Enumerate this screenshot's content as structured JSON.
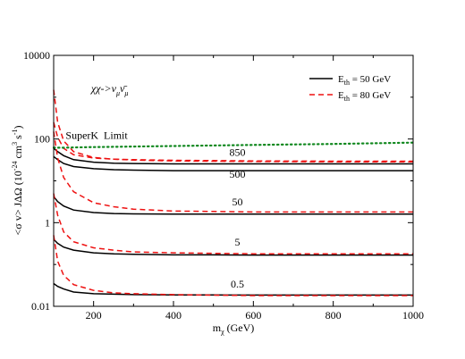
{
  "chart_data": {
    "type": "line",
    "title": "χχ->νμν̄μ",
    "title_parts": {
      "lead": "χχ->ν",
      "sub1": "μ",
      "mid": "ν̄",
      "sub2": "μ"
    },
    "xlabel": "mχ (GeV)",
    "xlabel_parts": {
      "lead": "m",
      "sub": "χ",
      "tail": " (GeV)"
    },
    "ylabel": "<σ v> JΔΩ (10^-24 cm^3 s^-1)",
    "ylabel_parts": {
      "lead": "<σ v> JΔΩ (10",
      "e1": "-24",
      "m1": " cm",
      "e2": "3",
      "m2": " s",
      "e3": "-1",
      "tail": ")"
    },
    "xlim": [
      100,
      1000
    ],
    "ylim": [
      0.01,
      10000
    ],
    "yscale": "log",
    "grid": false,
    "legend_position": "top-right",
    "x_ticks": [
      200,
      400,
      600,
      800,
      1000
    ],
    "x_tick_labels": [
      "200",
      "400",
      "600",
      "800",
      "1000"
    ],
    "y_ticks": [
      0.01,
      1,
      100,
      10000
    ],
    "y_tick_labels": [
      "0.01",
      "1",
      "100",
      "10000"
    ],
    "legend": [
      {
        "label_lead": "E",
        "label_sub": "th",
        "label_tail": " = 50 GeV",
        "color": "#000000",
        "dash": "solid"
      },
      {
        "label_lead": "E",
        "label_sub": "th",
        "label_tail": " = 80 GeV",
        "color": "#ee1111",
        "dash": "dashed"
      }
    ],
    "x": [
      100,
      110,
      125,
      150,
      200,
      250,
      300,
      400,
      500,
      600,
      800,
      1000
    ],
    "series": [
      {
        "group": "850",
        "threshold": "50 GeV",
        "color": "#000000",
        "dash": "solid",
        "values": [
          38,
          32,
          26,
          22,
          19.5,
          18.5,
          18,
          17.5,
          17.5,
          17.5,
          17.5,
          17.5
        ]
      },
      {
        "group": "850",
        "threshold": "80 GeV",
        "color": "#ee1111",
        "dash": "dashed",
        "values": [
          1500,
          250,
          90,
          50,
          36,
          33,
          31.5,
          30,
          29.5,
          29,
          28.5,
          28.5
        ]
      },
      {
        "group": "500",
        "threshold": "50 GeV",
        "color": "#000000",
        "dash": "solid",
        "values": [
          60,
          50,
          40,
          32,
          28,
          26.5,
          26,
          25.5,
          25.5,
          25.5,
          25.5,
          25.5
        ]
      },
      {
        "group": "500",
        "threshold": "80 GeV",
        "color": "#ee1111",
        "dash": "dashed",
        "values": [
          250,
          110,
          60,
          42,
          35,
          33,
          32,
          31,
          30.5,
          30,
          29.5,
          29.5
        ]
      },
      {
        "group": "50",
        "threshold": "50 GeV",
        "color": "#000000",
        "dash": "solid",
        "values": [
          4.2,
          3.2,
          2.5,
          2.0,
          1.75,
          1.65,
          1.62,
          1.6,
          1.6,
          1.6,
          1.6,
          1.6
        ]
      },
      {
        "group": "50",
        "threshold": "80 GeV",
        "color": "#ee1111",
        "dash": "dashed",
        "values": [
          150,
          35,
          12,
          5.5,
          3.0,
          2.4,
          2.1,
          1.9,
          1.85,
          1.8,
          1.8,
          1.8
        ]
      },
      {
        "group": "5",
        "threshold": "50 GeV",
        "color": "#000000",
        "dash": "solid",
        "values": [
          0.4,
          0.32,
          0.26,
          0.22,
          0.19,
          0.18,
          0.175,
          0.17,
          0.17,
          0.168,
          0.168,
          0.168
        ]
      },
      {
        "group": "5",
        "threshold": "80 GeV",
        "color": "#ee1111",
        "dash": "dashed",
        "values": [
          5,
          1.5,
          0.6,
          0.35,
          0.25,
          0.22,
          0.2,
          0.19,
          0.185,
          0.18,
          0.18,
          0.18
        ]
      },
      {
        "group": "0.5",
        "threshold": "50 GeV",
        "color": "#000000",
        "dash": "solid",
        "values": [
          0.035,
          0.03,
          0.026,
          0.022,
          0.02,
          0.0195,
          0.019,
          0.0188,
          0.0187,
          0.0186,
          0.0186,
          0.0186
        ]
      },
      {
        "group": "0.5",
        "threshold": "80 GeV",
        "color": "#ee1111",
        "dash": "dashed",
        "values": [
          0.5,
          0.12,
          0.055,
          0.033,
          0.024,
          0.021,
          0.02,
          0.019,
          0.0185,
          0.018,
          0.018,
          0.018
        ]
      },
      {
        "group": "SuperK Limit",
        "threshold": "",
        "color": "#11881f",
        "dash": "dotted",
        "values": [
          62,
          62,
          62,
          63,
          64,
          65,
          66,
          68,
          70,
          72,
          76,
          82
        ]
      }
    ],
    "annotations": [
      {
        "text": "SuperK  Limit",
        "x": 130,
        "y": 100
      },
      {
        "text": "850",
        "x": 560,
        "y": 40
      },
      {
        "text": "500",
        "x": 560,
        "y": 12
      },
      {
        "text": "50",
        "x": 560,
        "y": 2.6
      },
      {
        "text": "5",
        "x": 560,
        "y": 0.28
      },
      {
        "text": "0.5",
        "x": 560,
        "y": 0.028
      }
    ]
  }
}
